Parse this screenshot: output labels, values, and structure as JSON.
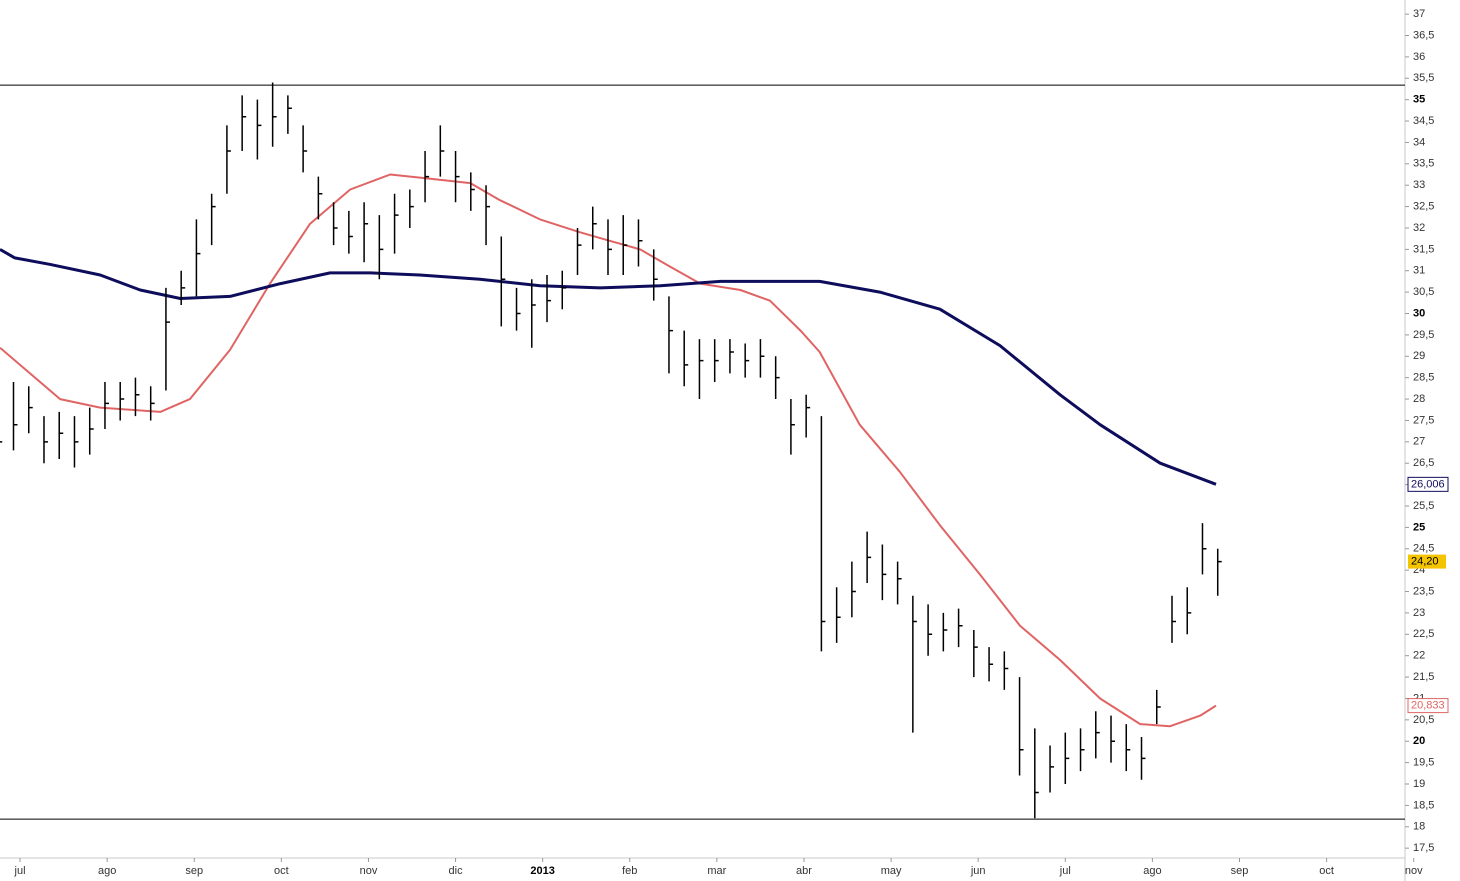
{
  "chart_data": {
    "type": "ohlc",
    "color": "#000000",
    "x": [
      -0.25,
      -0.075,
      0.1,
      0.275,
      0.45,
      0.625,
      0.8,
      0.975,
      1.15,
      1.325,
      1.5,
      1.675,
      1.85,
      2.025,
      2.2,
      2.375,
      2.55,
      2.725,
      2.9,
      3.075,
      3.25,
      3.425,
      3.6,
      3.775,
      3.95,
      4.125,
      4.3,
      4.475,
      4.65,
      4.825,
      5,
      5.175,
      5.35,
      5.525,
      5.7,
      5.875,
      6.05,
      6.225,
      6.4,
      6.575,
      6.75,
      6.925,
      7.1,
      7.275,
      7.45,
      7.625,
      7.8,
      7.975,
      8.15,
      8.325,
      8.5,
      8.675,
      8.85,
      9.025,
      9.2,
      9.375,
      9.55,
      9.725,
      9.9,
      10.075,
      10.25,
      10.425,
      10.6,
      10.775,
      10.95,
      11.125,
      11.3,
      11.475,
      11.65,
      11.825,
      12,
      12.175,
      12.35,
      12.525,
      12.7,
      12.875,
      13.05,
      13.225,
      13.4,
      13.575,
      13.75
    ],
    "high": [
      27.6,
      28.4,
      28.3,
      27.6,
      27.7,
      27.6,
      27.8,
      28.4,
      28.4,
      28.5,
      28.3,
      30.6,
      31.0,
      32.2,
      32.8,
      34.4,
      35.1,
      35.0,
      35.4,
      35.1,
      34.4,
      33.2,
      32.6,
      32.4,
      32.6,
      32.3,
      32.8,
      32.9,
      33.8,
      34.4,
      33.8,
      33.3,
      33.0,
      31.8,
      30.6,
      30.8,
      30.9,
      31.0,
      32.0,
      32.5,
      32.2,
      32.3,
      32.2,
      31.5,
      30.4,
      29.6,
      29.4,
      29.4,
      29.4,
      29.3,
      29.4,
      29.0,
      28.0,
      28.1,
      27.6,
      23.6,
      24.2,
      24.9,
      24.6,
      24.2,
      23.4,
      23.2,
      23.0,
      23.1,
      22.6,
      22.2,
      22.1,
      21.5,
      20.3,
      19.9,
      20.2,
      20.3,
      20.7,
      20.6,
      20.4,
      20.1,
      21.2,
      23.4,
      23.6,
      25.1,
      24.5
    ],
    "low": [
      26.2,
      26.8,
      27.2,
      26.5,
      26.6,
      26.4,
      26.7,
      27.3,
      27.5,
      27.6,
      27.5,
      28.2,
      30.2,
      30.4,
      31.6,
      32.8,
      33.8,
      33.6,
      33.9,
      34.2,
      33.3,
      32.2,
      31.6,
      31.4,
      31.2,
      30.8,
      31.4,
      32.0,
      32.6,
      33.2,
      32.6,
      32.4,
      31.6,
      29.7,
      29.6,
      29.2,
      29.8,
      30.1,
      30.9,
      31.5,
      30.9,
      30.9,
      31.1,
      30.3,
      28.6,
      28.3,
      28.0,
      28.4,
      28.6,
      28.5,
      28.5,
      28.0,
      26.7,
      27.1,
      22.1,
      22.3,
      22.9,
      23.7,
      23.3,
      23.2,
      20.2,
      22.0,
      22.1,
      22.2,
      21.5,
      21.4,
      21.2,
      19.2,
      18.2,
      18.8,
      19.0,
      19.3,
      19.6,
      19.5,
      19.3,
      19.1,
      20.4,
      22.3,
      22.5,
      23.9,
      23.4
    ],
    "close": [
      27.0,
      27.4,
      27.8,
      27.0,
      27.2,
      27.0,
      27.3,
      27.9,
      28.0,
      28.1,
      27.9,
      29.8,
      30.6,
      31.4,
      32.5,
      33.8,
      34.6,
      34.4,
      34.6,
      34.8,
      33.8,
      32.8,
      32.0,
      31.8,
      32.1,
      31.5,
      32.3,
      32.5,
      33.2,
      33.8,
      33.2,
      32.9,
      32.5,
      30.8,
      30.0,
      30.2,
      30.3,
      30.6,
      31.6,
      32.1,
      31.5,
      31.6,
      31.7,
      30.8,
      29.6,
      28.8,
      28.9,
      28.9,
      29.1,
      28.9,
      29.0,
      28.5,
      27.4,
      27.8,
      22.8,
      22.9,
      23.5,
      24.3,
      23.9,
      23.8,
      22.8,
      22.5,
      22.6,
      22.7,
      22.2,
      21.8,
      21.7,
      19.8,
      18.8,
      19.4,
      19.6,
      19.8,
      20.2,
      20.0,
      19.8,
      19.6,
      20.8,
      22.8,
      23.0,
      24.5,
      24.2
    ],
    "close_label": "24,20",
    "close_label_color": "#f5c400",
    "moving_averages": [
      {
        "color": "#e06464",
        "x": [
          -0.23,
          0.46,
          0.92,
          1.61,
          1.95,
          2.41,
          2.87,
          3.33,
          3.79,
          4.25,
          4.71,
          5.17,
          5.51,
          5.97,
          6.43,
          6.77,
          7.12,
          7.46,
          7.81,
          8.27,
          8.61,
          8.96,
          9.18,
          9.64,
          10.1,
          10.56,
          11.02,
          11.48,
          11.94,
          12.4,
          12.86,
          13.2,
          13.55,
          13.73
        ],
        "values": [
          29.2,
          28.0,
          27.8,
          27.7,
          28.0,
          29.15,
          30.7,
          32.1,
          32.9,
          33.25,
          33.15,
          33.05,
          32.65,
          32.2,
          31.9,
          31.7,
          31.5,
          31.1,
          30.7,
          30.55,
          30.3,
          29.6,
          29.1,
          27.4,
          26.3,
          25.05,
          23.9,
          22.7,
          21.9,
          21.0,
          20.4,
          20.35,
          20.6,
          20.833
        ],
        "end_label": "20,833"
      },
      {
        "color": "#0d0d5c",
        "x": [
          -0.23,
          -0.06,
          0.34,
          0.92,
          1.38,
          1.84,
          2.41,
          2.99,
          3.56,
          4.02,
          4.59,
          5.28,
          5.97,
          6.66,
          7.35,
          8.04,
          9.18,
          9.87,
          10.56,
          11.25,
          11.94,
          12.4,
          13.09,
          13.73
        ],
        "values": [
          31.5,
          31.3,
          31.15,
          30.9,
          30.55,
          30.35,
          30.4,
          30.7,
          30.95,
          30.95,
          30.9,
          30.8,
          30.65,
          30.6,
          30.65,
          30.75,
          30.75,
          30.5,
          30.1,
          29.25,
          28.1,
          27.4,
          26.5,
          26.006
        ],
        "end_label": "26,006"
      }
    ],
    "hlines": [
      35.34,
      18.18
    ],
    "xlim": [
      -0.23,
      15.9
    ],
    "ylim": [
      17.27,
      37.33
    ],
    "xticks": [
      {
        "value": 0,
        "label": "jul"
      },
      {
        "value": 1,
        "label": "ago"
      },
      {
        "value": 2,
        "label": "sep"
      },
      {
        "value": 3,
        "label": "oct"
      },
      {
        "value": 4,
        "label": "nov"
      },
      {
        "value": 5,
        "label": "dic"
      },
      {
        "value": 6,
        "label": "2013"
      },
      {
        "value": 7,
        "label": "feb"
      },
      {
        "value": 8,
        "label": "mar"
      },
      {
        "value": 9,
        "label": "abr"
      },
      {
        "value": 10,
        "label": "may"
      },
      {
        "value": 11,
        "label": "jun"
      },
      {
        "value": 12,
        "label": "jul"
      },
      {
        "value": 13,
        "label": "ago"
      },
      {
        "value": 14,
        "label": "sep"
      },
      {
        "value": 15,
        "label": "oct"
      },
      {
        "value": 16,
        "label": "nov"
      }
    ],
    "yticks": [
      {
        "value": 17.5,
        "label": "17,5"
      },
      18,
      {
        "value": 18.5,
        "label": "18,5"
      },
      19,
      {
        "value": 19.5,
        "label": "19,5"
      },
      20,
      {
        "value": 20.5,
        "label": "20,5"
      },
      21,
      {
        "value": 21.5,
        "label": "21,5"
      },
      22,
      {
        "value": 22.5,
        "label": "22,5"
      },
      23,
      {
        "value": 23.5,
        "label": "23,5"
      },
      24,
      {
        "value": 24.5,
        "label": "24,5"
      },
      25,
      {
        "value": 25.5,
        "label": "25,5"
      },
      26,
      {
        "value": 26.5,
        "label": "26,5"
      },
      27,
      {
        "value": 27.5,
        "label": "27,5"
      },
      28,
      {
        "value": 28.5,
        "label": "28,5"
      },
      29,
      {
        "value": 29.5,
        "label": "29,5"
      },
      30,
      {
        "value": 30.5,
        "label": "30,5"
      },
      31,
      {
        "value": 31.5,
        "label": "31,5"
      },
      32,
      {
        "value": 32.5,
        "label": "32,5"
      },
      33,
      {
        "value": 33.5,
        "label": "33,5"
      },
      34,
      {
        "value": 34.5,
        "label": "34,5"
      },
      35,
      {
        "value": 35.5,
        "label": "35,5"
      },
      36,
      {
        "value": 36.5,
        "label": "36,5"
      },
      37
    ]
  }
}
